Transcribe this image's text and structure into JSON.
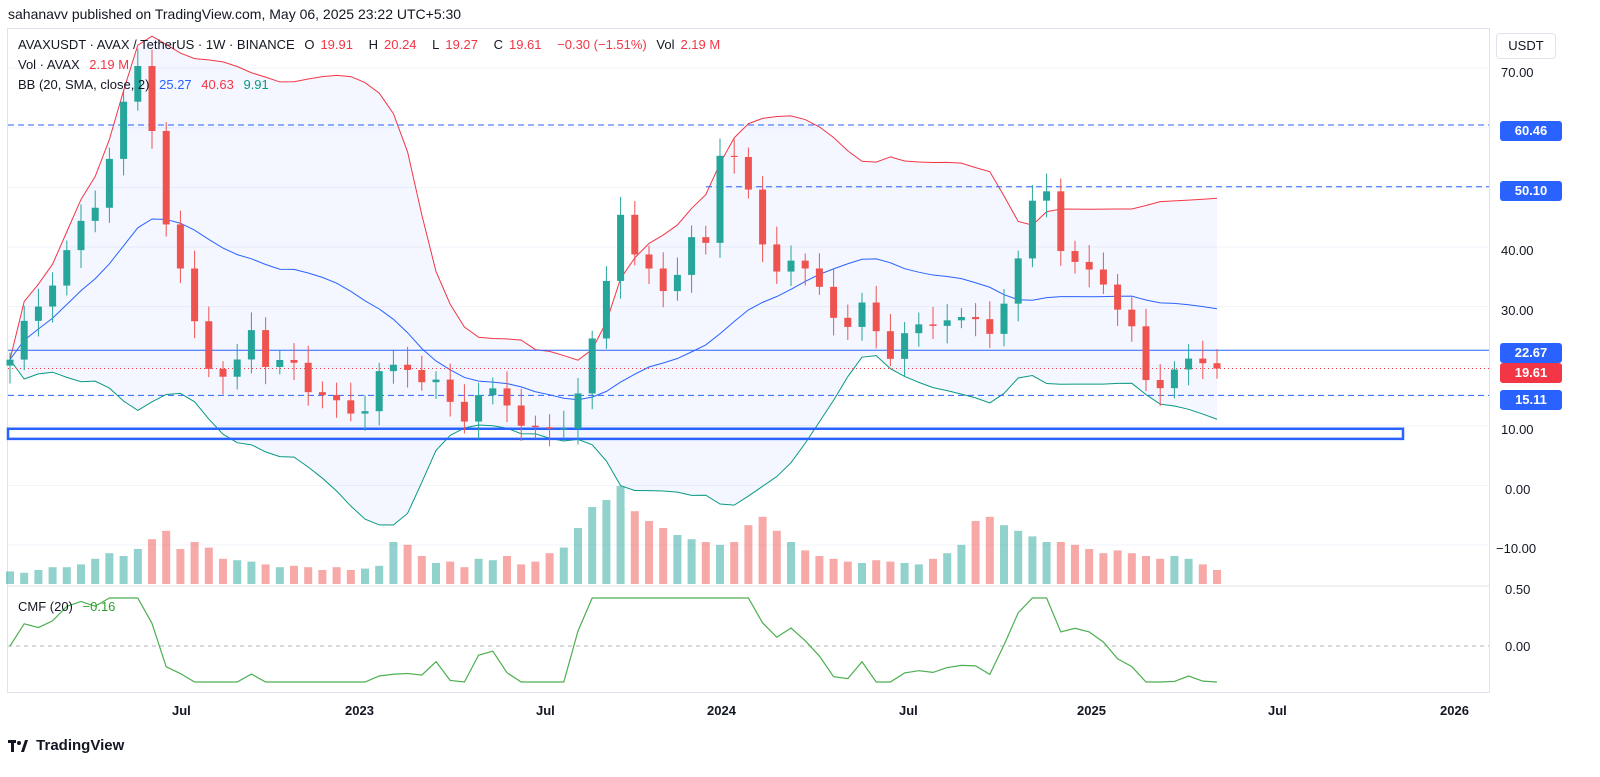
{
  "header": {
    "published": "sahanavv published on TradingView.com, May 06, 2025 23:22 UTC+5:30"
  },
  "legend": {
    "symbol": "AVAXUSDT · AVAX / TetherUS · 1W · BINANCE",
    "o_label": "O",
    "o": "19.91",
    "h_label": "H",
    "h": "20.24",
    "l_label": "L",
    "l": "19.27",
    "c_label": "C",
    "c": "19.61",
    "change": "−0.30 (−1.51%)",
    "vol_label": "Vol",
    "vol": "2.19 M",
    "vol_row_label": "Vol · AVAX",
    "vol_row_value": "2.19 M",
    "bb_label": "BB (20, SMA, close, 2)",
    "bb_basis": "25.27",
    "bb_upper": "40.63",
    "bb_lower": "9.91",
    "cmf_label": "CMF (20)",
    "cmf_value": "−0.16"
  },
  "price_axis": {
    "currency": "USDT",
    "ticks": [
      "70.00",
      "60.46",
      "50.10",
      "40.00",
      "30.00",
      "22.67",
      "19.61",
      "15.11",
      "10.00",
      "0.00",
      "−10.00"
    ],
    "cmf_ticks": [
      "0.50",
      "0.00"
    ]
  },
  "time_axis": {
    "labels": [
      "Jul",
      "2023",
      "Jul",
      "2024",
      "Jul",
      "2025",
      "Jul",
      "2026"
    ]
  },
  "footer": {
    "brand": "TradingView"
  },
  "colors": {
    "up": "#26a69a",
    "down": "#ef5350",
    "bb_upper": "#f23645",
    "bb_basis": "#2962ff",
    "bb_lower": "#089981",
    "level": "#2962ff",
    "cmf": "#4caf50"
  },
  "chart_data": {
    "type": "candlestick",
    "title": "AVAXUSDT · AVAX / TetherUS · 1W · BINANCE",
    "ylim": [
      -13,
      75
    ],
    "levels": [
      60.46,
      50.1,
      22.67,
      15.11
    ],
    "support_zone": [
      7.8,
      9.5
    ],
    "last_price": 19.61,
    "close_path": [
      [
        0,
        20
      ],
      [
        3,
        36
      ],
      [
        6,
        47
      ],
      [
        9,
        70
      ],
      [
        10,
        62
      ],
      [
        11,
        45
      ],
      [
        12,
        35
      ],
      [
        13,
        27
      ],
      [
        14,
        20
      ],
      [
        15,
        17
      ],
      [
        16,
        20
      ],
      [
        17,
        28
      ],
      [
        18,
        22
      ],
      [
        19,
        20
      ],
      [
        20,
        19
      ],
      [
        21,
        16
      ],
      [
        22,
        15
      ],
      [
        23,
        13
      ],
      [
        24,
        13
      ],
      [
        25,
        15
      ],
      [
        26,
        19
      ],
      [
        27,
        18
      ],
      [
        28,
        19
      ],
      [
        29,
        18
      ],
      [
        30,
        17
      ],
      [
        31,
        14
      ],
      [
        32,
        13
      ],
      [
        33,
        16
      ],
      [
        34,
        14
      ],
      [
        35,
        12
      ],
      [
        36,
        11
      ],
      [
        37,
        10
      ],
      [
        38,
        9
      ],
      [
        39,
        11
      ],
      [
        40,
        17
      ],
      [
        41,
        23
      ],
      [
        42,
        32
      ],
      [
        43,
        46
      ],
      [
        44,
        40
      ],
      [
        45,
        36
      ],
      [
        46,
        33
      ],
      [
        47,
        37
      ],
      [
        48,
        41
      ],
      [
        49,
        38
      ],
      [
        50,
        55
      ],
      [
        51,
        57
      ],
      [
        52,
        50
      ],
      [
        53,
        40
      ],
      [
        54,
        37
      ],
      [
        55,
        38
      ],
      [
        56,
        34
      ],
      [
        57,
        32
      ],
      [
        58,
        30
      ],
      [
        59,
        28
      ],
      [
        60,
        30
      ],
      [
        61,
        26
      ],
      [
        62,
        22
      ],
      [
        63,
        24
      ],
      [
        64,
        25
      ],
      [
        65,
        28
      ],
      [
        66,
        30
      ],
      [
        67,
        28
      ],
      [
        68,
        27
      ],
      [
        69,
        26
      ],
      [
        70,
        30
      ],
      [
        71,
        36
      ],
      [
        72,
        48
      ],
      [
        73,
        52
      ],
      [
        74,
        40
      ],
      [
        75,
        36
      ],
      [
        76,
        36
      ],
      [
        77,
        34
      ],
      [
        78,
        28
      ],
      [
        79,
        26
      ],
      [
        80,
        20
      ],
      [
        81,
        18
      ],
      [
        82,
        18
      ],
      [
        83,
        20
      ],
      [
        84,
        21
      ],
      [
        85,
        19.61
      ]
    ],
    "volume": [
      9,
      8,
      10,
      12,
      12,
      14,
      18,
      22,
      20,
      25,
      32,
      38,
      25,
      30,
      26,
      18,
      17,
      16,
      14,
      12,
      13,
      12,
      10,
      12,
      10,
      11,
      13,
      30,
      28,
      20,
      15,
      16,
      12,
      18,
      17,
      20,
      14,
      16,
      22,
      26,
      40,
      55,
      60,
      70,
      52,
      45,
      40,
      35,
      32,
      30,
      28,
      30,
      42,
      48,
      38,
      30,
      24,
      20,
      18,
      16,
      15,
      17,
      16,
      15,
      14,
      18,
      22,
      28,
      45,
      48,
      42,
      38,
      34,
      30,
      30,
      28,
      25,
      22,
      24,
      22,
      20,
      18,
      20,
      18,
      14,
      10
    ]
  }
}
